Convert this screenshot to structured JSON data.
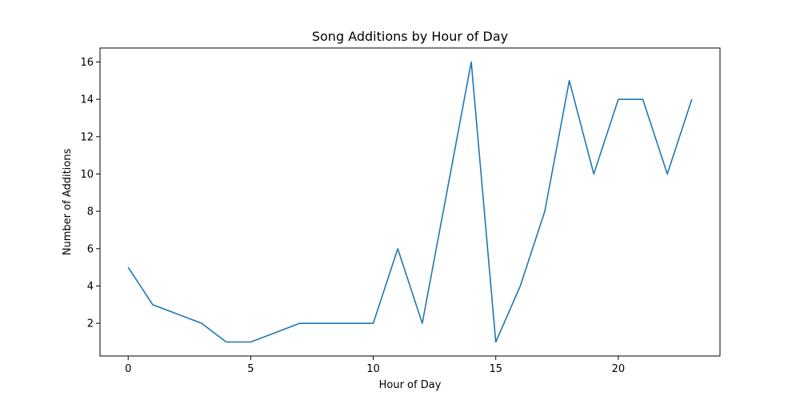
{
  "chart_data": {
    "type": "line",
    "title": "Song Additions by Hour of Day",
    "xlabel": "Hour of Day",
    "ylabel": "Number of Additions",
    "xlim": [
      -1.15,
      24.15
    ],
    "ylim": [
      0.25,
      16.75
    ],
    "xticks": [
      0,
      5,
      10,
      15,
      20
    ],
    "yticks": [
      2,
      4,
      6,
      8,
      10,
      12,
      14,
      16
    ],
    "grid": false,
    "series": [
      {
        "color": "#1f77b4",
        "x": [
          0,
          1,
          2,
          3,
          4,
          5,
          6,
          7,
          8,
          9,
          10,
          11,
          12,
          13,
          14,
          15,
          16,
          17,
          18,
          19,
          20,
          21,
          22,
          23
        ],
        "y": [
          5,
          3,
          2.5,
          2,
          1,
          1,
          1.5,
          2,
          2,
          2,
          2,
          6,
          2,
          9,
          16,
          1,
          4,
          8,
          15,
          10,
          14,
          14,
          10,
          14
        ]
      }
    ]
  }
}
